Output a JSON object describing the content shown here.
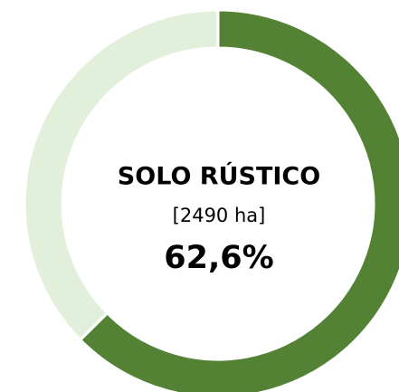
{
  "chart_data": {
    "type": "donut",
    "title": "SOLO RÚSTICO",
    "subtitle": "[2490 ha]",
    "values": [
      62.6,
      37.4
    ],
    "value_labels": [
      "62,6%",
      null
    ],
    "colors": [
      "#548235",
      "#e2efda"
    ]
  }
}
